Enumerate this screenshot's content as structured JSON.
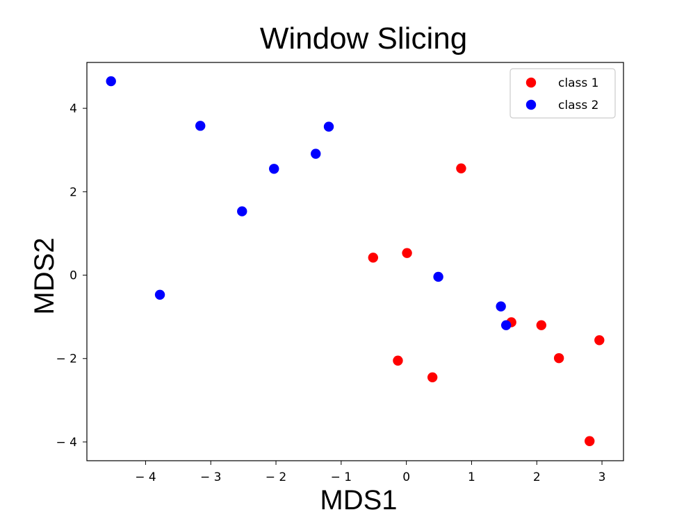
{
  "chart_data": {
    "type": "scatter",
    "title": "Window Slicing",
    "xlabel": "MDS1",
    "ylabel": "MDS2",
    "xlim": [
      -4.9,
      3.33
    ],
    "ylim": [
      -4.45,
      5.1
    ],
    "xticks": [
      -4,
      -3,
      -2,
      -1,
      0,
      1,
      2,
      3
    ],
    "yticks": [
      -4,
      -2,
      0,
      2,
      4
    ],
    "xtick_labels": [
      "− 4",
      "− 3",
      "− 2",
      "− 1",
      "0",
      "1",
      "2",
      "3"
    ],
    "ytick_labels": [
      "− 4",
      "− 2",
      "0",
      "2",
      "4"
    ],
    "grid": false,
    "legend_position": "top-right",
    "series": [
      {
        "name": "class 1",
        "color": "#ff0000",
        "points": [
          [
            0.84,
            2.56
          ],
          [
            -0.51,
            0.42
          ],
          [
            0.01,
            0.53
          ],
          [
            1.61,
            -1.13
          ],
          [
            2.07,
            -1.2
          ],
          [
            2.96,
            -1.56
          ],
          [
            2.34,
            -1.99
          ],
          [
            -0.13,
            -2.05
          ],
          [
            0.4,
            -2.45
          ],
          [
            2.81,
            -3.98
          ]
        ]
      },
      {
        "name": "class 2",
        "color": "#0000ff",
        "points": [
          [
            -4.53,
            4.65
          ],
          [
            -3.16,
            3.58
          ],
          [
            -1.19,
            3.56
          ],
          [
            -1.39,
            2.91
          ],
          [
            -2.03,
            2.55
          ],
          [
            -2.52,
            1.53
          ],
          [
            -3.78,
            -0.47
          ],
          [
            0.49,
            -0.04
          ],
          [
            1.45,
            -0.75
          ],
          [
            1.53,
            -1.2
          ]
        ]
      }
    ]
  }
}
